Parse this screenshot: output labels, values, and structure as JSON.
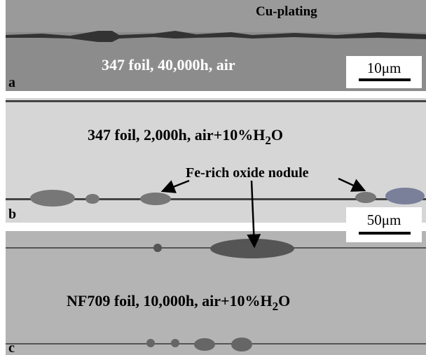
{
  "panels": [
    {
      "letter": "a",
      "label": "Cu-plating",
      "caption": "347 foil, 40,000h, air",
      "scale_bar": "10μm"
    },
    {
      "letter": "b",
      "caption_main": "347 foil, 2,000h, air+10%H",
      "caption_sub": "2",
      "caption_end": "O",
      "annotation": "Fe-rich oxide nodule",
      "scale_bar": "50μm"
    },
    {
      "letter": "c",
      "caption_main": "NF709 foil, 10,000h, air+10%H",
      "caption_sub": "2",
      "caption_end": "O"
    }
  ]
}
